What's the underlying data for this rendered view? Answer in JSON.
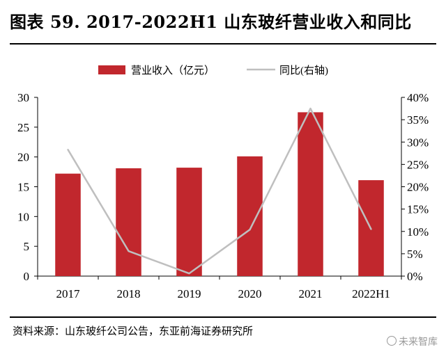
{
  "header": {
    "title": "图表 59. 2017-2022H1 山东玻纤营业收入和同比"
  },
  "footer": {
    "source": "资料来源：山东玻纤公司公告，东亚前海证券研究所",
    "watermark": "未来智库"
  },
  "colors": {
    "bar": "#C1272D",
    "line": "#BFBFBF",
    "axis": "#000000"
  },
  "chart_data": {
    "type": "bar",
    "categories": [
      "2017",
      "2018",
      "2019",
      "2020",
      "2021",
      "2022H1"
    ],
    "series": [
      {
        "name": "营业收入（亿元）",
        "type": "bar",
        "axis": "left",
        "values": [
          17.2,
          18.1,
          18.2,
          20.1,
          27.5,
          16.1
        ]
      },
      {
        "name": "同比(右轴)",
        "type": "line",
        "axis": "right",
        "values": [
          28.3,
          5.6,
          0.6,
          10.4,
          37.5,
          10.5
        ]
      }
    ],
    "y_left": {
      "min": 0,
      "max": 30,
      "ticks": [
        0,
        5,
        10,
        15,
        20,
        25,
        30
      ]
    },
    "y_right": {
      "min": 0,
      "max": 40,
      "ticks": [
        "0%",
        "5%",
        "10%",
        "15%",
        "20%",
        "25%",
        "30%",
        "35%",
        "40%"
      ]
    },
    "legend": "top-center",
    "grid": false
  }
}
